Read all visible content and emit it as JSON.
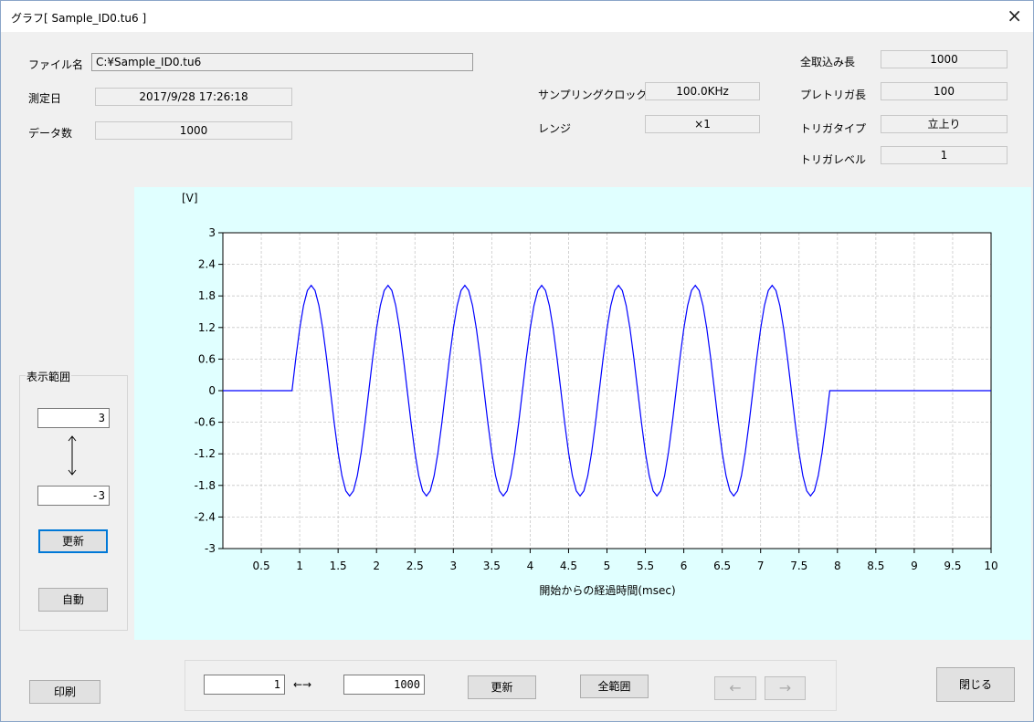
{
  "window": {
    "title": "グラフ[ Sample_ID0.tu6 ]",
    "close_glyph": "×"
  },
  "info": {
    "file_label": "ファイル名",
    "file_value": "C:¥Sample_ID0.tu6",
    "date_label": "測定日",
    "date_value": "2017/9/28 17:26:18",
    "count_label": "データ数",
    "count_value": "1000",
    "sampling_label": "サンプリングクロック",
    "sampling_value": "100.0KHz",
    "range_label": "レンジ",
    "range_value": "×1",
    "total_label": "全取込み長",
    "total_value": "1000",
    "pretrig_label": "プレトリガ長",
    "pretrig_value": "100",
    "trigtype_label": "トリガタイプ",
    "trigtype_value": "立上り",
    "triglevel_label": "トリガレベル",
    "triglevel_value": "1"
  },
  "display_range": {
    "title": "表示範囲",
    "max_value": "3",
    "min_value": "-3",
    "update_label": "更新",
    "auto_label": "自動"
  },
  "bottom": {
    "print_label": "印刷",
    "start_value": "1",
    "arrow_text": "←→",
    "end_value": "1000",
    "update_label": "更新",
    "full_range_label": "全範囲",
    "prev_label": "←",
    "next_label": "→",
    "close_label": "閉じる"
  },
  "chart_data": {
    "type": "line",
    "ylabel": "[V]",
    "xlabel": "開始からの経過時間(msec)",
    "xlim": [
      0,
      10
    ],
    "ylim": [
      -3,
      3
    ],
    "xticks": [
      0.5,
      1,
      1.5,
      2,
      2.5,
      3,
      3.5,
      4,
      4.5,
      5,
      5.5,
      6,
      6.5,
      7,
      7.5,
      8,
      8.5,
      9,
      9.5,
      10
    ],
    "yticks": [
      3,
      2.4,
      1.8,
      1.2,
      0.6,
      0,
      -0.6,
      -1.2,
      -1.8,
      -2.4,
      -3
    ],
    "grid": true,
    "line_color": "#0000ff",
    "series": [
      {
        "x": [
          0,
          0.9,
          0.95,
          1.0,
          1.05,
          1.1,
          1.15,
          1.2,
          1.25,
          1.3,
          1.35,
          1.4,
          1.45,
          1.5,
          1.55,
          1.6,
          1.65,
          1.7,
          1.75,
          1.8,
          1.85,
          1.9,
          1.95,
          2.0,
          2.05,
          2.1,
          2.15,
          2.2,
          2.25,
          2.3,
          2.35,
          2.4,
          2.45,
          2.5,
          2.55,
          2.6,
          2.65,
          2.7,
          2.75,
          2.8,
          2.85,
          2.9,
          2.95,
          3.0,
          3.05,
          3.1,
          3.15,
          3.2,
          3.25,
          3.3,
          3.35,
          3.4,
          3.45,
          3.5,
          3.55,
          3.6,
          3.65,
          3.7,
          3.75,
          3.8,
          3.85,
          3.9,
          3.95,
          4.0,
          4.05,
          4.1,
          4.15,
          4.2,
          4.25,
          4.3,
          4.35,
          4.4,
          4.45,
          4.5,
          4.55,
          4.6,
          4.65,
          4.7,
          4.75,
          4.8,
          4.85,
          4.9,
          4.95,
          5.0,
          5.05,
          5.1,
          5.15,
          5.2,
          5.25,
          5.3,
          5.35,
          5.4,
          5.45,
          5.5,
          5.55,
          5.6,
          5.65,
          5.7,
          5.75,
          5.8,
          5.85,
          5.9,
          5.95,
          6.0,
          6.05,
          6.1,
          6.15,
          6.2,
          6.25,
          6.3,
          6.35,
          6.4,
          6.45,
          6.5,
          6.55,
          6.6,
          6.65,
          6.7,
          6.75,
          6.8,
          6.85,
          6.9,
          6.95,
          7.0,
          7.05,
          7.1,
          7.15,
          7.2,
          7.25,
          7.3,
          7.35,
          7.4,
          7.45,
          7.5,
          7.55,
          7.6,
          7.65,
          7.7,
          7.75,
          7.8,
          7.85,
          7.9,
          10
        ],
        "y": [
          0,
          0,
          0.618,
          1.176,
          1.618,
          1.902,
          2.0,
          1.902,
          1.618,
          1.176,
          0.618,
          0,
          -0.618,
          -1.176,
          -1.618,
          -1.902,
          -2.0,
          -1.902,
          -1.618,
          -1.176,
          -0.618,
          0,
          0.618,
          1.176,
          1.618,
          1.902,
          2.0,
          1.902,
          1.618,
          1.176,
          0.618,
          0,
          -0.618,
          -1.176,
          -1.618,
          -1.902,
          -2.0,
          -1.902,
          -1.618,
          -1.176,
          -0.618,
          0,
          0.618,
          1.176,
          1.618,
          1.902,
          2.0,
          1.902,
          1.618,
          1.176,
          0.618,
          0,
          -0.618,
          -1.176,
          -1.618,
          -1.902,
          -2.0,
          -1.902,
          -1.618,
          -1.176,
          -0.618,
          0,
          0.618,
          1.176,
          1.618,
          1.902,
          2.0,
          1.902,
          1.618,
          1.176,
          0.618,
          0,
          -0.618,
          -1.176,
          -1.618,
          -1.902,
          -2.0,
          -1.902,
          -1.618,
          -1.176,
          -0.618,
          0,
          0.618,
          1.176,
          1.618,
          1.902,
          2.0,
          1.902,
          1.618,
          1.176,
          0.618,
          0,
          -0.618,
          -1.176,
          -1.618,
          -1.902,
          -2.0,
          -1.902,
          -1.618,
          -1.176,
          -0.618,
          0,
          0.618,
          1.176,
          1.618,
          1.902,
          2.0,
          1.902,
          1.618,
          1.176,
          0.618,
          0,
          -0.618,
          -1.176,
          -1.618,
          -1.902,
          -2.0,
          -1.902,
          -1.618,
          -1.176,
          -0.618,
          0,
          0.618,
          1.176,
          1.618,
          1.902,
          2.0,
          1.902,
          1.618,
          1.176,
          0.618,
          0,
          -0.618,
          -1.176,
          -1.618,
          -1.902,
          -2.0,
          -1.902,
          -1.618,
          -1.176,
          -0.618,
          0,
          0
        ]
      }
    ]
  }
}
